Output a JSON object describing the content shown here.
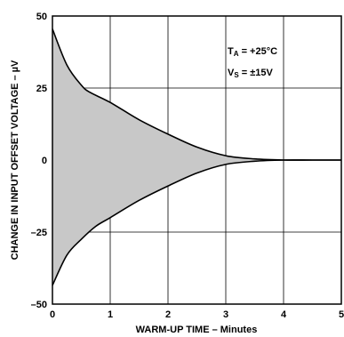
{
  "chart_data": {
    "type": "area",
    "xlabel": "WARM-UP TIME – Minutes",
    "ylabel": "CHANGE IN INPUT OFFSET VOLTAGE – µV",
    "xlim": [
      0,
      5
    ],
    "ylim": [
      -50,
      50
    ],
    "x_ticks": [
      "0",
      "1",
      "2",
      "3",
      "4",
      "5"
    ],
    "y_ticks": [
      "50",
      "25",
      "0",
      "–25",
      "–50"
    ],
    "x_tick_values": [
      0,
      1,
      2,
      3,
      4,
      5
    ],
    "y_tick_values": [
      50,
      25,
      0,
      -25,
      -50
    ],
    "grid": true,
    "fill_color": "#c8c8c8",
    "line_color": "#000000",
    "annotations": {
      "ta_main": "T",
      "ta_sub": "A",
      "ta_rest": " = +25°C",
      "vs_main": "V",
      "vs_sub": "S",
      "vs_rest": " = ±15V"
    },
    "series": [
      {
        "x": [
          0,
          0.25,
          0.5,
          0.65,
          1.0,
          1.5,
          2.0,
          2.5,
          3.0,
          3.5,
          4.0,
          4.5,
          5.0
        ],
        "values": [
          45.5,
          33,
          26,
          23.5,
          20,
          14,
          9,
          4.5,
          1.5,
          0.4,
          0,
          0,
          0
        ]
      },
      {
        "x": [
          0,
          0.25,
          0.5,
          0.75,
          1.0,
          1.5,
          2.0,
          2.5,
          3.0,
          3.5,
          4.0,
          4.5,
          5.0
        ],
        "values": [
          -43.5,
          -33,
          -27.5,
          -23,
          -20,
          -14,
          -9,
          -4.5,
          -1.5,
          -0.4,
          0,
          0,
          0
        ]
      }
    ]
  }
}
